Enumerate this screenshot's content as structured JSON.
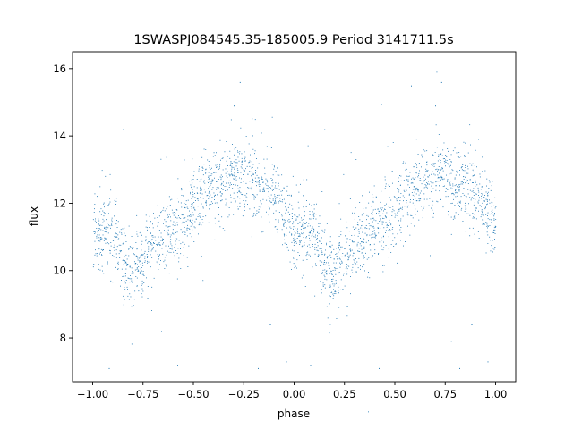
{
  "chart_data": {
    "type": "scatter",
    "title": "1SWASPJ084545.35-185005.9 Period 3141711.5s",
    "xlabel": "phase",
    "ylabel": "flux",
    "xlim": [
      -1.1,
      1.1
    ],
    "ylim": [
      6.7,
      16.5
    ],
    "x_ticks": [
      {
        "value": -1.0,
        "label": "−1.00"
      },
      {
        "value": -0.75,
        "label": "−0.75"
      },
      {
        "value": -0.5,
        "label": "−0.50"
      },
      {
        "value": -0.25,
        "label": "−0.25"
      },
      {
        "value": 0.0,
        "label": "0.00"
      },
      {
        "value": 0.25,
        "label": "0.25"
      },
      {
        "value": 0.5,
        "label": "0.50"
      },
      {
        "value": 0.75,
        "label": "0.75"
      },
      {
        "value": 1.0,
        "label": "1.00"
      }
    ],
    "y_ticks": [
      {
        "value": 8,
        "label": "8"
      },
      {
        "value": 10,
        "label": "10"
      },
      {
        "value": 12,
        "label": "12"
      },
      {
        "value": 14,
        "label": "14"
      },
      {
        "value": 16,
        "label": "16"
      }
    ],
    "grid": false,
    "legend": false,
    "marker_color": "#1f77b4",
    "description_of_trend": {
      "mean_curve": [
        {
          "x": -1.0,
          "y": 11.2
        },
        {
          "x": -0.95,
          "y": 11.2
        },
        {
          "x": -0.9,
          "y": 11.1
        },
        {
          "x": -0.85,
          "y": 10.2
        },
        {
          "x": -0.8,
          "y": 9.8
        },
        {
          "x": -0.75,
          "y": 10.4
        },
        {
          "x": -0.7,
          "y": 10.8
        },
        {
          "x": -0.65,
          "y": 11.0
        },
        {
          "x": -0.6,
          "y": 11.2
        },
        {
          "x": -0.55,
          "y": 11.5
        },
        {
          "x": -0.5,
          "y": 11.9
        },
        {
          "x": -0.45,
          "y": 12.3
        },
        {
          "x": -0.4,
          "y": 12.5
        },
        {
          "x": -0.35,
          "y": 12.6
        },
        {
          "x": -0.3,
          "y": 12.8
        },
        {
          "x": -0.25,
          "y": 12.9
        },
        {
          "x": -0.2,
          "y": 12.7
        },
        {
          "x": -0.15,
          "y": 12.4
        },
        {
          "x": -0.1,
          "y": 12.2
        },
        {
          "x": -0.05,
          "y": 11.8
        },
        {
          "x": 0.0,
          "y": 11.2
        },
        {
          "x": 0.05,
          "y": 11.2
        },
        {
          "x": 0.1,
          "y": 11.1
        },
        {
          "x": 0.15,
          "y": 10.2
        },
        {
          "x": 0.2,
          "y": 9.8
        },
        {
          "x": 0.25,
          "y": 10.4
        },
        {
          "x": 0.3,
          "y": 10.8
        },
        {
          "x": 0.35,
          "y": 11.0
        },
        {
          "x": 0.4,
          "y": 11.2
        },
        {
          "x": 0.45,
          "y": 11.5
        },
        {
          "x": 0.5,
          "y": 11.9
        },
        {
          "x": 0.55,
          "y": 12.3
        },
        {
          "x": 0.6,
          "y": 12.5
        },
        {
          "x": 0.65,
          "y": 12.6
        },
        {
          "x": 0.7,
          "y": 12.8
        },
        {
          "x": 0.75,
          "y": 12.9
        },
        {
          "x": 0.8,
          "y": 12.7
        },
        {
          "x": 0.85,
          "y": 12.4
        },
        {
          "x": 0.9,
          "y": 12.2
        },
        {
          "x": 0.95,
          "y": 11.8
        },
        {
          "x": 1.0,
          "y": 11.2
        }
      ],
      "scatter_spread": 0.55,
      "point_count": 2600,
      "outlier_points": [
        {
          "x": -0.92,
          "y": 7.1
        },
        {
          "x": -0.58,
          "y": 7.2
        },
        {
          "x": -0.42,
          "y": 15.5
        },
        {
          "x": -0.27,
          "y": 15.6
        },
        {
          "x": -0.18,
          "y": 7.1
        },
        {
          "x": -0.04,
          "y": 7.3
        },
        {
          "x": 0.08,
          "y": 7.2
        },
        {
          "x": 0.42,
          "y": 7.1
        },
        {
          "x": 0.58,
          "y": 15.5
        },
        {
          "x": 0.73,
          "y": 15.6
        },
        {
          "x": 0.82,
          "y": 7.1
        },
        {
          "x": 0.96,
          "y": 7.3
        },
        {
          "x": -0.85,
          "y": 14.2
        },
        {
          "x": 0.15,
          "y": 14.2
        },
        {
          "x": -0.66,
          "y": 8.2
        },
        {
          "x": 0.34,
          "y": 8.2
        },
        {
          "x": -0.3,
          "y": 14.9
        },
        {
          "x": 0.7,
          "y": 14.9
        },
        {
          "x": -0.12,
          "y": 8.4
        },
        {
          "x": 0.88,
          "y": 8.4
        }
      ]
    }
  }
}
